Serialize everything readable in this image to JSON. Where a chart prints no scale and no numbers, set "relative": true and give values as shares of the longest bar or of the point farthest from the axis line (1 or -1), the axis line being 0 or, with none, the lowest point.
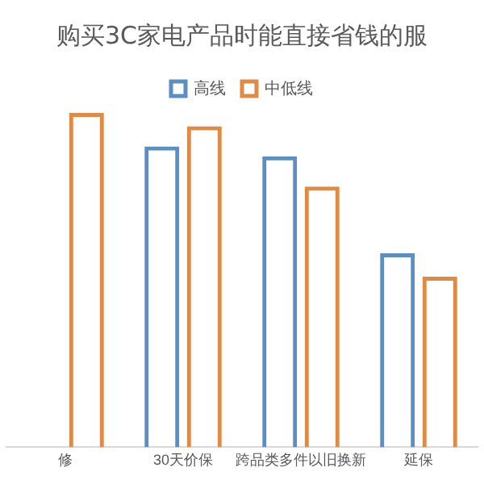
{
  "chart_data": {
    "type": "bar",
    "title": "购买3C家电产品时能直接省钱的服",
    "relative": true,
    "legend": "top",
    "grid": false,
    "categories": [
      "修",
      "30天价保",
      "跨品类多件以旧换新",
      "延保"
    ],
    "series": [
      {
        "name": "高线",
        "color": "#5b8fc4",
        "values": [
          null,
          0.9,
          0.87,
          0.58
        ]
      },
      {
        "name": "中低线",
        "color": "#e08a45",
        "values": [
          1,
          0.96,
          0.78,
          0.51
        ]
      }
    ]
  }
}
